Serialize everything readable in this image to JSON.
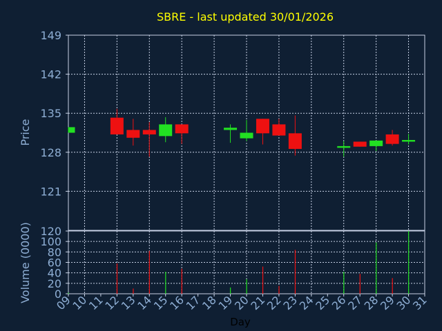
{
  "chart_data": [
    {
      "type": "candlestick",
      "title": "SBRE - last updated 30/01/2026",
      "ylabel": "Price",
      "xlabel": "Day",
      "ylim": [
        114,
        149
      ],
      "yticks": [
        149,
        142,
        135,
        128,
        121
      ],
      "grid": true,
      "categories": [
        "09",
        "10",
        "11",
        "12",
        "13",
        "14",
        "15",
        "16",
        "17",
        "18",
        "19",
        "20",
        "21",
        "22",
        "23",
        "24",
        "25",
        "26",
        "27",
        "28",
        "29",
        "30",
        "31"
      ],
      "candles": [
        {
          "day": "09",
          "open": 131.5,
          "close": 132.5,
          "high": 132.5,
          "low": 131.5
        },
        {
          "day": "12",
          "open": 134.2,
          "close": 131.2,
          "high": 135.8,
          "low": 131.2
        },
        {
          "day": "13",
          "open": 132.0,
          "close": 130.6,
          "high": 134.0,
          "low": 129.2
        },
        {
          "day": "14",
          "open": 132.0,
          "close": 131.2,
          "high": 133.4,
          "low": 127.2
        },
        {
          "day": "15",
          "open": 130.9,
          "close": 133.0,
          "high": 134.3,
          "low": 129.8
        },
        {
          "day": "16",
          "open": 133.0,
          "close": 131.4,
          "high": 133.0,
          "low": 129.5
        },
        {
          "day": "19",
          "open": 132.0,
          "close": 132.4,
          "high": 133.0,
          "low": 129.7
        },
        {
          "day": "20",
          "open": 130.5,
          "close": 131.5,
          "high": 133.8,
          "low": 130.0
        },
        {
          "day": "21",
          "open": 134.0,
          "close": 131.4,
          "high": 134.0,
          "low": 129.4
        },
        {
          "day": "22",
          "open": 133.0,
          "close": 131.0,
          "high": 134.0,
          "low": 131.0
        },
        {
          "day": "23",
          "open": 131.4,
          "close": 128.6,
          "high": 134.6,
          "low": 127.4
        },
        {
          "day": "26",
          "open": 128.8,
          "close": 129.1,
          "high": 130.0,
          "low": 127.2
        },
        {
          "day": "27",
          "open": 129.9,
          "close": 129.0,
          "high": 129.9,
          "low": 129.0
        },
        {
          "day": "28",
          "open": 129.1,
          "close": 130.1,
          "high": 130.1,
          "low": 128.2
        },
        {
          "day": "29",
          "open": 131.2,
          "close": 129.5,
          "high": 132.0,
          "low": 129.2
        },
        {
          "day": "30",
          "open": 129.9,
          "close": 130.2,
          "high": 131.3,
          "low": 129.4
        }
      ],
      "colors": {
        "up": "#22e022",
        "down": "#ee1111"
      }
    },
    {
      "type": "bar",
      "ylabel": "Volume (0000)",
      "ylim": [
        0,
        120
      ],
      "yticks": [
        120,
        100,
        80,
        60,
        40,
        20,
        0
      ],
      "grid": true,
      "bars": [
        {
          "day": "09",
          "value": 2,
          "dir": "up"
        },
        {
          "day": "12",
          "value": 58,
          "dir": "down"
        },
        {
          "day": "13",
          "value": 10,
          "dir": "down"
        },
        {
          "day": "14",
          "value": 82,
          "dir": "down"
        },
        {
          "day": "15",
          "value": 42,
          "dir": "up"
        },
        {
          "day": "16",
          "value": 48,
          "dir": "down"
        },
        {
          "day": "19",
          "value": 12,
          "dir": "up"
        },
        {
          "day": "20",
          "value": 28,
          "dir": "up"
        },
        {
          "day": "21",
          "value": 52,
          "dir": "down"
        },
        {
          "day": "22",
          "value": 15,
          "dir": "down"
        },
        {
          "day": "23",
          "value": 84,
          "dir": "down"
        },
        {
          "day": "26",
          "value": 42,
          "dir": "up"
        },
        {
          "day": "27",
          "value": 38,
          "dir": "down"
        },
        {
          "day": "28",
          "value": 98,
          "dir": "up"
        },
        {
          "day": "29",
          "value": 30,
          "dir": "down"
        },
        {
          "day": "30",
          "value": 120,
          "dir": "up"
        }
      ]
    }
  ],
  "colors": {
    "background": "#0f1f33",
    "title": "#ffff00",
    "axis_text": "#8eaed4",
    "grid": "#c8d2e6",
    "frame": "#c8d2e6"
  }
}
